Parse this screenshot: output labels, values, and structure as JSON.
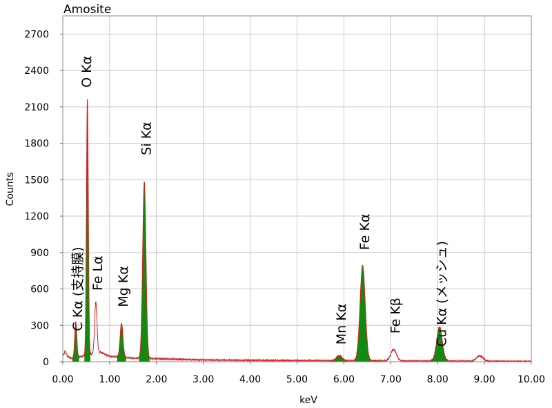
{
  "chart_data": {
    "type": "area",
    "title": "Amosite",
    "xlabel": "keV",
    "ylabel": "Counts",
    "xlim": [
      0,
      10
    ],
    "ylim": [
      0,
      2850
    ],
    "x_ticks": [
      "0.00",
      "1.00",
      "2.00",
      "3.00",
      "4.00",
      "5.00",
      "6.00",
      "7.00",
      "8.00",
      "9.00",
      "10.00"
    ],
    "y_ticks": [
      "0",
      "300",
      "600",
      "900",
      "1200",
      "1500",
      "1800",
      "2100",
      "2400",
      "2700"
    ],
    "grid": true,
    "colors": {
      "spectrum_line": "#d42020",
      "peak_fill": "#118a11",
      "grid": "#c8c8c8",
      "frame": "#888888"
    },
    "background": {
      "baseline": [
        [
          0.02,
          60
        ],
        [
          0.05,
          90
        ],
        [
          0.1,
          45
        ],
        [
          0.2,
          25
        ],
        [
          0.8,
          80
        ],
        [
          1.0,
          45
        ],
        [
          1.5,
          30
        ],
        [
          2.0,
          25
        ],
        [
          3.0,
          15
        ],
        [
          4.0,
          12
        ],
        [
          5.0,
          10
        ],
        [
          6.0,
          9
        ],
        [
          7.0,
          7
        ],
        [
          8.0,
          6
        ],
        [
          9.0,
          4
        ],
        [
          10.0,
          3
        ]
      ]
    },
    "peaks": [
      {
        "label": "C Kα (支持膜)",
        "energy": 0.277,
        "height": 300,
        "sigma": 0.022,
        "filled": true,
        "label_energy": 0.33,
        "label_counts": 600
      },
      {
        "label": "O Kα",
        "energy": 0.525,
        "height": 2110,
        "sigma": 0.02,
        "filled": true,
        "label_energy": 0.52,
        "label_counts": 2390
      },
      {
        "label": "Fe Lα",
        "energy": 0.705,
        "height": 420,
        "sigma": 0.025,
        "filled": false,
        "label_energy": 0.76,
        "label_counts": 730
      },
      {
        "label": "Mg Kα",
        "energy": 1.254,
        "height": 280,
        "sigma": 0.03,
        "filled": true,
        "label_energy": 1.3,
        "label_counts": 620
      },
      {
        "label": "Si Kα",
        "energy": 1.74,
        "height": 1455,
        "sigma": 0.035,
        "filled": true,
        "label_energy": 1.8,
        "label_counts": 1840
      },
      {
        "label": "Mn Kα",
        "energy": 5.9,
        "height": 40,
        "sigma": 0.06,
        "filled": true,
        "label_energy": 5.96,
        "label_counts": 310
      },
      {
        "label": "Fe Kα",
        "energy": 6.4,
        "height": 785,
        "sigma": 0.055,
        "filled": true,
        "label_energy": 6.46,
        "label_counts": 1070
      },
      {
        "label": "Fe Kβ",
        "energy": 7.06,
        "height": 95,
        "sigma": 0.06,
        "filled": false,
        "label_energy": 7.11,
        "label_counts": 380
      },
      {
        "label": "Cu Kα (メッシュ)",
        "energy": 8.04,
        "height": 280,
        "sigma": 0.06,
        "filled": true,
        "label_energy": 8.1,
        "label_counts": 560
      },
      {
        "label": "",
        "energy": 8.9,
        "height": 45,
        "sigma": 0.07,
        "filled": false
      }
    ]
  }
}
